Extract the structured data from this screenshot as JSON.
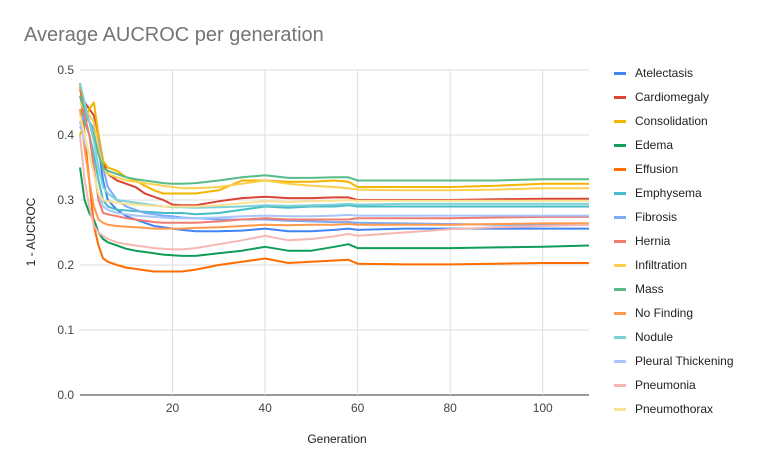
{
  "chart_data": {
    "type": "line",
    "title": "Average AUCROC per generation",
    "xlabel": "Generation",
    "ylabel": "1 - AUCROC",
    "xlim": [
      0,
      110
    ],
    "ylim": [
      0,
      0.5
    ],
    "xticks": [
      "20",
      "40",
      "60",
      "80",
      "100"
    ],
    "yticks": [
      "0.0",
      "0.1",
      "0.2",
      "0.3",
      "0.4",
      "0.5"
    ],
    "x": [
      0,
      1,
      2,
      3,
      4,
      5,
      6,
      8,
      10,
      12,
      14,
      16,
      18,
      20,
      22,
      25,
      30,
      35,
      40,
      45,
      50,
      55,
      58,
      60,
      70,
      80,
      90,
      100,
      110
    ],
    "series": [
      {
        "name": "Atelectasis",
        "color": "#4285f4",
        "values": [
          0.41,
          0.42,
          0.43,
          0.42,
          0.38,
          0.33,
          0.3,
          0.285,
          0.275,
          0.27,
          0.265,
          0.26,
          0.258,
          0.256,
          0.254,
          0.252,
          0.252,
          0.253,
          0.256,
          0.252,
          0.252,
          0.254,
          0.256,
          0.254,
          0.256,
          0.256,
          0.256,
          0.256,
          0.256
        ]
      },
      {
        "name": "Cardiomegaly",
        "color": "#db4437",
        "values": [
          0.47,
          0.45,
          0.44,
          0.43,
          0.4,
          0.36,
          0.34,
          0.33,
          0.325,
          0.32,
          0.31,
          0.305,
          0.3,
          0.293,
          0.292,
          0.292,
          0.298,
          0.303,
          0.305,
          0.303,
          0.303,
          0.304,
          0.304,
          0.3,
          0.3,
          0.3,
          0.301,
          0.302,
          0.302
        ]
      },
      {
        "name": "Consolidation",
        "color": "#f4b400",
        "values": [
          0.4,
          0.42,
          0.44,
          0.45,
          0.4,
          0.36,
          0.35,
          0.345,
          0.335,
          0.33,
          0.322,
          0.315,
          0.31,
          0.31,
          0.31,
          0.31,
          0.315,
          0.33,
          0.33,
          0.328,
          0.328,
          0.33,
          0.328,
          0.32,
          0.32,
          0.32,
          0.322,
          0.325,
          0.325
        ]
      },
      {
        "name": "Edema",
        "color": "#0f9d58",
        "values": [
          0.35,
          0.3,
          0.28,
          0.27,
          0.25,
          0.24,
          0.235,
          0.23,
          0.225,
          0.222,
          0.22,
          0.218,
          0.216,
          0.215,
          0.214,
          0.214,
          0.218,
          0.222,
          0.228,
          0.222,
          0.222,
          0.228,
          0.232,
          0.226,
          0.226,
          0.226,
          0.227,
          0.228,
          0.23
        ]
      },
      {
        "name": "Effusion",
        "color": "#ff6d01",
        "values": [
          0.48,
          0.4,
          0.33,
          0.26,
          0.23,
          0.21,
          0.205,
          0.2,
          0.196,
          0.194,
          0.192,
          0.19,
          0.19,
          0.19,
          0.19,
          0.193,
          0.2,
          0.205,
          0.21,
          0.203,
          0.205,
          0.207,
          0.208,
          0.202,
          0.201,
          0.201,
          0.202,
          0.203,
          0.203
        ]
      },
      {
        "name": "Emphysema",
        "color": "#46bdc6",
        "values": [
          0.44,
          0.42,
          0.4,
          0.37,
          0.33,
          0.3,
          0.29,
          0.285,
          0.284,
          0.283,
          0.282,
          0.281,
          0.28,
          0.28,
          0.28,
          0.278,
          0.28,
          0.285,
          0.29,
          0.288,
          0.29,
          0.29,
          0.292,
          0.29,
          0.29,
          0.29,
          0.29,
          0.29,
          0.29
        ]
      },
      {
        "name": "Fibrosis",
        "color": "#7baaf7",
        "values": [
          0.42,
          0.43,
          0.42,
          0.41,
          0.39,
          0.35,
          0.32,
          0.3,
          0.29,
          0.285,
          0.28,
          0.278,
          0.276,
          0.275,
          0.273,
          0.272,
          0.27,
          0.27,
          0.27,
          0.268,
          0.267,
          0.266,
          0.266,
          0.265,
          0.264,
          0.263,
          0.262,
          0.262,
          0.262
        ]
      },
      {
        "name": "Hernia",
        "color": "#f07b72",
        "values": [
          0.46,
          0.43,
          0.4,
          0.35,
          0.3,
          0.28,
          0.278,
          0.275,
          0.272,
          0.27,
          0.268,
          0.266,
          0.265,
          0.265,
          0.265,
          0.265,
          0.267,
          0.27,
          0.272,
          0.27,
          0.27,
          0.27,
          0.27,
          0.272,
          0.272,
          0.272,
          0.273,
          0.274,
          0.274
        ]
      },
      {
        "name": "Infiltration",
        "color": "#fcd04f",
        "values": [
          0.45,
          0.44,
          0.43,
          0.42,
          0.38,
          0.35,
          0.34,
          0.335,
          0.33,
          0.328,
          0.326,
          0.324,
          0.322,
          0.32,
          0.318,
          0.318,
          0.32,
          0.325,
          0.33,
          0.325,
          0.322,
          0.32,
          0.318,
          0.316,
          0.315,
          0.315,
          0.316,
          0.318,
          0.318
        ]
      },
      {
        "name": "Mass",
        "color": "#57bb8a",
        "values": [
          0.46,
          0.44,
          0.42,
          0.4,
          0.37,
          0.35,
          0.345,
          0.34,
          0.335,
          0.332,
          0.33,
          0.328,
          0.326,
          0.325,
          0.325,
          0.326,
          0.33,
          0.335,
          0.338,
          0.334,
          0.334,
          0.335,
          0.335,
          0.33,
          0.33,
          0.33,
          0.33,
          0.332,
          0.332
        ]
      },
      {
        "name": "No Finding",
        "color": "#ff994d",
        "values": [
          0.44,
          0.38,
          0.33,
          0.29,
          0.27,
          0.265,
          0.262,
          0.26,
          0.259,
          0.258,
          0.257,
          0.256,
          0.256,
          0.256,
          0.256,
          0.257,
          0.258,
          0.26,
          0.262,
          0.261,
          0.262,
          0.262,
          0.263,
          0.262,
          0.262,
          0.262,
          0.263,
          0.264,
          0.264
        ]
      },
      {
        "name": "Nodule",
        "color": "#7ed1d7",
        "values": [
          0.48,
          0.45,
          0.42,
          0.39,
          0.35,
          0.32,
          0.31,
          0.3,
          0.298,
          0.296,
          0.294,
          0.292,
          0.29,
          0.289,
          0.289,
          0.288,
          0.289,
          0.29,
          0.292,
          0.291,
          0.292,
          0.293,
          0.294,
          0.293,
          0.294,
          0.294,
          0.294,
          0.294,
          0.294
        ]
      },
      {
        "name": "Pleural Thickening",
        "color": "#a7c7fa",
        "values": [
          0.42,
          0.39,
          0.37,
          0.34,
          0.31,
          0.29,
          0.285,
          0.28,
          0.278,
          0.276,
          0.275,
          0.274,
          0.273,
          0.272,
          0.272,
          0.272,
          0.273,
          0.275,
          0.276,
          0.275,
          0.275,
          0.276,
          0.277,
          0.276,
          0.276,
          0.276,
          0.276,
          0.276,
          0.276
        ]
      },
      {
        "name": "Pneumonia",
        "color": "#f5b7b1",
        "values": [
          0.4,
          0.33,
          0.29,
          0.26,
          0.25,
          0.245,
          0.24,
          0.235,
          0.232,
          0.23,
          0.228,
          0.226,
          0.225,
          0.224,
          0.224,
          0.226,
          0.232,
          0.238,
          0.245,
          0.238,
          0.24,
          0.244,
          0.248,
          0.245,
          0.25,
          0.255,
          0.258,
          0.26,
          0.262
        ]
      },
      {
        "name": "Pneumothorax",
        "color": "#fde293",
        "values": [
          0.43,
          0.4,
          0.37,
          0.34,
          0.31,
          0.3,
          0.298,
          0.296,
          0.294,
          0.293,
          0.292,
          0.291,
          0.29,
          0.29,
          0.29,
          0.29,
          0.292,
          0.295,
          0.298,
          0.297,
          0.298,
          0.299,
          0.3,
          0.299,
          0.299,
          0.299,
          0.299,
          0.299,
          0.299
        ]
      }
    ]
  }
}
